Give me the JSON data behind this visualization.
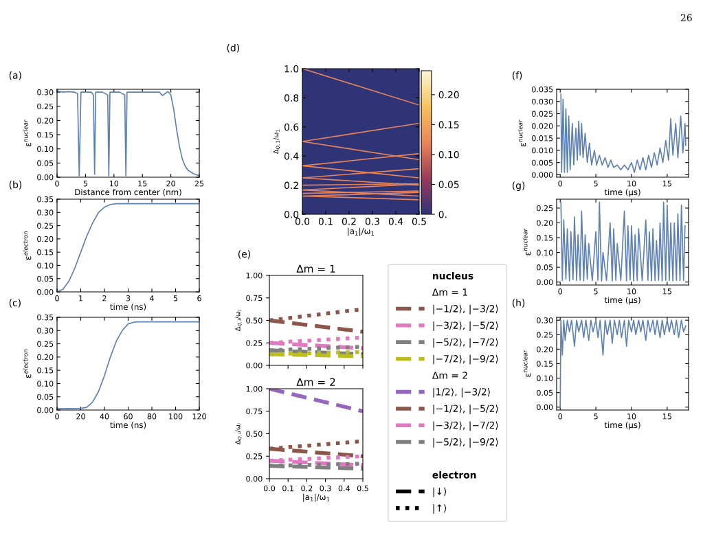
{
  "chart_data": [
    {
      "type": "line",
      "ylabel": "ε$^{nuclear}$",
      "xlabel": "Distance from center (nm)",
      "annotations": [
        "(a)",
        "26"
      ],
      "xlim": [
        0,
        25
      ],
      "xticks": [
        0,
        5,
        10,
        15,
        20,
        25
      ],
      "ylim": [
        0,
        0.31
      ],
      "yticks": [
        {
          "value": 0,
          "label": "0.00"
        },
        {
          "value": 0.05,
          "label": "0.05"
        },
        {
          "value": 0.1,
          "label": "0.10"
        },
        {
          "value": 0.15,
          "label": "0.15"
        },
        {
          "value": 0.2,
          "label": "0.20"
        },
        {
          "value": 0.25,
          "label": "0.25"
        },
        {
          "value": 0.3,
          "label": "0.30"
        }
      ],
      "series": [
        {
          "color": "#5e81b5",
          "x": [
            0,
            1,
            2,
            3,
            3.6,
            3.9,
            4.2,
            5,
            6,
            6.4,
            6.6,
            6.8,
            8,
            8.9,
            9.1,
            9.3,
            10,
            11,
            11.9,
            12.1,
            12.3,
            13,
            15,
            17,
            18,
            18.5,
            19,
            19.5,
            20,
            20.5,
            21,
            21.5,
            22,
            22.5,
            23,
            24,
            25
          ],
          "values": [
            0.305,
            0.3,
            0.302,
            0.3,
            0.295,
            0.005,
            0.3,
            0.3,
            0.3,
            0.29,
            0.01,
            0.3,
            0.3,
            0.29,
            0.005,
            0.3,
            0.3,
            0.3,
            0.29,
            0.005,
            0.3,
            0.3,
            0.3,
            0.3,
            0.3,
            0.288,
            0.295,
            0.302,
            0.29,
            0.24,
            0.17,
            0.11,
            0.065,
            0.04,
            0.025,
            0.012,
            0.005
          ]
        }
      ]
    },
    {
      "type": "line",
      "ylabel": "ε$^{electron}$",
      "xlabel": "time (ns)",
      "annotations": [
        "(b)"
      ],
      "xlim": [
        0,
        6
      ],
      "xticks": [
        0,
        1,
        2,
        3,
        4,
        5,
        6
      ],
      "ylim": [
        0,
        0.35
      ],
      "yticks": [
        {
          "value": 0,
          "label": "0.00"
        },
        {
          "value": 0.05,
          "label": "0.05"
        },
        {
          "value": 0.1,
          "label": "0.10"
        },
        {
          "value": 0.15,
          "label": "0.15"
        },
        {
          "value": 0.2,
          "label": "0.20"
        },
        {
          "value": 0.25,
          "label": "0.25"
        },
        {
          "value": 0.3,
          "label": "0.30"
        },
        {
          "value": 0.35,
          "label": "0.35"
        }
      ],
      "series": [
        {
          "color": "#5e81b5",
          "x": [
            0,
            0.25,
            0.5,
            0.75,
            1,
            1.25,
            1.5,
            1.75,
            2,
            2.25,
            2.5,
            3,
            6
          ],
          "values": [
            0,
            0.01,
            0.04,
            0.09,
            0.15,
            0.21,
            0.26,
            0.3,
            0.32,
            0.33,
            0.333,
            0.333,
            0.333
          ]
        }
      ]
    },
    {
      "type": "line",
      "ylabel": "ε$^{electron}$",
      "xlabel": "time (ns)",
      "annotations": [
        "(c)"
      ],
      "xlim": [
        0,
        120
      ],
      "xticks": [
        0,
        20,
        40,
        60,
        80,
        100,
        120
      ],
      "ylim": [
        0,
        0.35
      ],
      "yticks": [
        {
          "value": 0,
          "label": "0.00"
        },
        {
          "value": 0.05,
          "label": "0.05"
        },
        {
          "value": 0.1,
          "label": "0.10"
        },
        {
          "value": 0.15,
          "label": "0.15"
        },
        {
          "value": 0.2,
          "label": "0.20"
        },
        {
          "value": 0.25,
          "label": "0.25"
        },
        {
          "value": 0.3,
          "label": "0.30"
        },
        {
          "value": 0.35,
          "label": "0.35"
        }
      ],
      "series": [
        {
          "color": "#5e81b5",
          "x": [
            0,
            20,
            25,
            30,
            35,
            40,
            45,
            50,
            55,
            60,
            65,
            70,
            120
          ],
          "values": [
            0.005,
            0.006,
            0.01,
            0.03,
            0.07,
            0.13,
            0.2,
            0.26,
            0.3,
            0.325,
            0.332,
            0.333,
            0.333
          ]
        }
      ]
    },
    {
      "type": "line",
      "ylabel": "Δ$_{Q,1}$/ω$_{1}$",
      "xlabel": "|a$_{1}$|/ω$_{1}$",
      "annotations": [
        "(d)"
      ],
      "xlim": [
        0,
        0.5
      ],
      "xticks": [
        {
          "value": 0,
          "label": "0.0"
        },
        0.1,
        0.2,
        0.3,
        0.4,
        0.5
      ],
      "ylim": [
        0,
        1
      ],
      "yticks": [
        {
          "value": 0,
          "label": "0.0"
        },
        0.2,
        0.4,
        0.6,
        0.8,
        {
          "value": 1,
          "label": "1.0"
        }
      ],
      "bands": [
        {
          "axis": "x",
          "from": 0,
          "to": 0.5,
          "color": "#2f3477"
        }
      ],
      "clim": [
        0,
        0.24
      ],
      "cticks": [
        {
          "value": 0,
          "label": "0."
        },
        {
          "value": 0.05,
          "label": "0.05"
        },
        {
          "value": 0.1,
          "label": "0.10"
        },
        {
          "value": 0.15,
          "label": "0.15"
        },
        {
          "value": 0.2,
          "label": "0.20"
        }
      ],
      "series": [
        {
          "color": "#e8855a",
          "x": [
            0,
            0.5
          ],
          "values": [
            1.0,
            0.75
          ]
        },
        {
          "color": "#e8855a",
          "x": [
            0,
            0.5
          ],
          "values": [
            0.5,
            0.625
          ]
        },
        {
          "color": "#e8855a",
          "x": [
            0,
            0.5
          ],
          "values": [
            0.5,
            0.375
          ]
        },
        {
          "color": "#e8855a",
          "x": [
            0,
            0.5
          ],
          "values": [
            0.333,
            0.417
          ]
        },
        {
          "color": "#e8855a",
          "x": [
            0,
            0.5
          ],
          "values": [
            0.333,
            0.25
          ]
        },
        {
          "color": "#e8855a",
          "x": [
            0,
            0.5
          ],
          "values": [
            0.25,
            0.313
          ]
        },
        {
          "color": "#e8855a",
          "x": [
            0,
            0.5
          ],
          "values": [
            0.25,
            0.2
          ]
        },
        {
          "color": "#e8855a",
          "x": [
            0,
            0.5
          ],
          "values": [
            0.2,
            0.21
          ]
        },
        {
          "color": "#e8855a",
          "x": [
            0,
            0.5
          ],
          "values": [
            0.167,
            0.208
          ]
        },
        {
          "color": "#e8855a",
          "x": [
            0,
            0.5
          ],
          "values": [
            0.167,
            0.125
          ]
        },
        {
          "color": "#e8855a",
          "x": [
            0,
            0.5
          ],
          "values": [
            0.143,
            0.16
          ]
        },
        {
          "color": "#e8855a",
          "x": [
            0,
            0.5
          ],
          "values": [
            0.125,
            0.1
          ]
        },
        {
          "color": "#e8855a",
          "x": [
            0,
            0.5
          ],
          "values": [
            0.125,
            0.15
          ]
        }
      ]
    },
    {
      "type": "line",
      "title": "Δm = 1",
      "ylabel": "Δ$_{Q,i}$/ω$_{i}$",
      "annotations": [
        "(e)"
      ],
      "legend": "right",
      "legend_title": "nucleus",
      "tick_labels": "y",
      "xlim": [
        0,
        0.5
      ],
      "ylim": [
        0,
        1
      ],
      "yticks": [
        {
          "value": 0,
          "label": "0.00"
        },
        {
          "value": 0.25,
          "label": "0.25"
        },
        {
          "value": 0.5,
          "label": "0.50"
        },
        {
          "value": 0.75,
          "label": "0.75"
        },
        {
          "value": 1,
          "label": "1.00"
        }
      ],
      "series": [
        {
          "name": "|−1/2⟩, |−3/2⟩",
          "color": "#8c564b",
          "line_style": "dashed",
          "x": [
            0,
            0.5
          ],
          "values": [
            0.5,
            0.375
          ]
        },
        {
          "name": "|−3/2⟩, |−5/2⟩",
          "color": "#e377c2",
          "line_style": "dashed",
          "x": [
            0,
            0.5
          ],
          "values": [
            0.25,
            0.19
          ]
        },
        {
          "name": "|−5/2⟩, |−7/2⟩",
          "color": "#7f7f7f",
          "line_style": "dashed",
          "x": [
            0,
            0.5
          ],
          "values": [
            0.167,
            0.125
          ]
        },
        {
          "name": "|−7/2⟩, |−9/2⟩",
          "color": "#bcbd22",
          "line_style": "dashed",
          "x": [
            0,
            0.5
          ],
          "values": [
            0.125,
            0.1
          ]
        },
        {
          "color": "#8c564b",
          "line_style": "dotted",
          "x": [
            0,
            0.5
          ],
          "values": [
            0.5,
            0.625
          ]
        },
        {
          "color": "#e377c2",
          "line_style": "dotted",
          "x": [
            0,
            0.5
          ],
          "values": [
            0.25,
            0.31
          ]
        },
        {
          "color": "#7f7f7f",
          "line_style": "dotted",
          "x": [
            0,
            0.5
          ],
          "values": [
            0.167,
            0.208
          ]
        },
        {
          "color": "#bcbd22",
          "line_style": "dotted",
          "x": [
            0,
            0.5
          ],
          "values": [
            0.125,
            0.15
          ]
        }
      ]
    },
    {
      "type": "line",
      "title": "Δm = 2",
      "ylabel": "Δ$_{Q,i}$/ω$_{i}$",
      "xlabel": "|a$_{1}$|/ω$_{1}$",
      "legend": "right",
      "legend_title": "electron",
      "xlim": [
        0,
        0.5
      ],
      "xticks": [
        {
          "value": 0,
          "label": "0.0"
        },
        0.1,
        0.2,
        0.3,
        0.4,
        0.5
      ],
      "ylim": [
        0,
        1
      ],
      "yticks": [
        {
          "value": 0,
          "label": "0.00"
        },
        {
          "value": 0.25,
          "label": "0.25"
        },
        {
          "value": 0.5,
          "label": "0.50"
        },
        {
          "value": 0.75,
          "label": "0.75"
        },
        {
          "value": 1,
          "label": "1.00"
        }
      ],
      "series": [
        {
          "name": "|1/2⟩, |−3/2⟩",
          "color": "#9467bd",
          "line_style": "dashed",
          "x": [
            0,
            0.5
          ],
          "values": [
            1.0,
            0.75
          ]
        },
        {
          "name": "|−1/2⟩, |−5/2⟩",
          "color": "#8c564b",
          "line_style": "dashed",
          "x": [
            0,
            0.5
          ],
          "values": [
            0.333,
            0.25
          ]
        },
        {
          "name": "|−3/2⟩, |−7/2⟩",
          "color": "#e377c2",
          "line_style": "dashed",
          "x": [
            0,
            0.5
          ],
          "values": [
            0.2,
            0.15
          ]
        },
        {
          "name": "|−5/2⟩, |−9/2⟩",
          "color": "#7f7f7f",
          "line_style": "dashed",
          "x": [
            0,
            0.5
          ],
          "values": [
            0.143,
            0.111
          ]
        },
        {
          "color": "#8c564b",
          "line_style": "dotted",
          "x": [
            0,
            0.5
          ],
          "values": [
            0.333,
            0.417
          ]
        },
        {
          "color": "#e377c2",
          "line_style": "dotted",
          "x": [
            0,
            0.5
          ],
          "values": [
            0.2,
            0.25
          ]
        },
        {
          "color": "#7f7f7f",
          "line_style": "dotted",
          "x": [
            0,
            0.5
          ],
          "values": [
            0.143,
            0.167
          ]
        },
        {
          "name": "|↓⟩",
          "color": "#000000",
          "line_style": "dashed",
          "values": [
            null,
            null
          ]
        },
        {
          "name": "|↑⟩",
          "color": "#000000",
          "line_style": "dotted",
          "values": [
            null,
            null
          ]
        }
      ]
    },
    {
      "type": "line",
      "ylabel": "ε$^{nuclear}$",
      "xlabel": "time (μs)",
      "annotations": [
        "(f)"
      ],
      "xlim": [
        -0.5,
        18
      ],
      "xticks": [
        0,
        5,
        10,
        15
      ],
      "ylim": [
        -0.001,
        0.035
      ],
      "yticks": [
        {
          "value": 0,
          "label": "0.000"
        },
        {
          "value": 0.005,
          "label": "0.005"
        },
        {
          "value": 0.01,
          "label": "0.010"
        },
        {
          "value": 0.015,
          "label": "0.015"
        },
        {
          "value": 0.02,
          "label": "0.020"
        },
        {
          "value": 0.025,
          "label": "0.025"
        },
        {
          "value": 0.03,
          "label": "0.030"
        },
        {
          "value": 0.035,
          "label": "0.035"
        }
      ],
      "series": [
        {
          "color": "#5e81b5",
          "x": [
            0.1,
            0.2,
            0.4,
            0.6,
            0.8,
            1.0,
            1.2,
            1.4,
            1.7,
            1.9,
            2.2,
            2.4,
            2.6,
            2.8,
            3.0,
            3.2,
            3.5,
            3.8,
            4.1,
            4.4,
            4.8,
            5.1,
            5.5,
            5.9,
            6.3,
            6.7,
            7.1,
            7.5,
            8,
            8.5,
            9,
            9.5,
            10,
            10.4,
            10.8,
            11.2,
            11.6,
            12,
            12.4,
            12.8,
            13.2,
            13.6,
            14,
            14.4,
            14.8,
            15.2,
            15.5,
            15.8,
            16.2,
            16.5,
            16.9,
            17.2,
            17.5,
            17.6
          ],
          "values": [
            0.033,
            0.001,
            0.031,
            0.001,
            0.027,
            0.001,
            0.024,
            0.002,
            0.021,
            0.004,
            0.019,
            0.006,
            0.022,
            0.008,
            0.021,
            0.007,
            0.017,
            0.005,
            0.013,
            0.004,
            0.01,
            0.004,
            0.008,
            0.004,
            0.007,
            0.003,
            0.006,
            0.003,
            0.004,
            0.002,
            0.004,
            0.002,
            0.005,
            0.001,
            0.006,
            0.002,
            0.007,
            0.002,
            0.008,
            0.003,
            0.009,
            0.004,
            0.011,
            0.005,
            0.014,
            0.006,
            0.023,
            0.008,
            0.021,
            0.007,
            0.024,
            0.009,
            0.021,
            0.012
          ]
        }
      ]
    },
    {
      "type": "line",
      "ylabel": "ε$^{nuclear}$",
      "xlabel": "time (μs)",
      "annotations": [
        "(g)"
      ],
      "xlim": [
        -0.5,
        18
      ],
      "xticks": [
        0,
        5,
        10,
        15
      ],
      "ylim": [
        -0.01,
        0.28
      ],
      "yticks": [
        {
          "value": 0,
          "label": "0.00"
        },
        {
          "value": 0.05,
          "label": "0.05"
        },
        {
          "value": 0.1,
          "label": "0.10"
        },
        {
          "value": 0.15,
          "label": "0.15"
        },
        {
          "value": 0.2,
          "label": "0.20"
        },
        {
          "value": 0.25,
          "label": "0.25"
        }
      ],
      "series": [
        {
          "color": "#5e81b5",
          "x": [
            0.1,
            0.3,
            0.5,
            0.8,
            1,
            1.3,
            1.5,
            1.8,
            2,
            2.3,
            2.5,
            2.8,
            3,
            3.3,
            3.5,
            3.8,
            4,
            4.5,
            5,
            5.3,
            5.5,
            5.8,
            6,
            6.5,
            7,
            7.3,
            7.5,
            7.8,
            8,
            8.5,
            9,
            9.3,
            9.5,
            9.8,
            10,
            10.3,
            10.5,
            10.8,
            11,
            11.5,
            12,
            12.3,
            12.5,
            12.8,
            13,
            13.3,
            13.5,
            13.8,
            14,
            14.3,
            14.5,
            14.8,
            15,
            15.3,
            15.5,
            15.8,
            16,
            16.3,
            16.5,
            16.8,
            17,
            17.3,
            17.5
          ],
          "values": [
            0.27,
            0.005,
            0.21,
            0.01,
            0.18,
            0.004,
            0.17,
            0.008,
            0.22,
            0.005,
            0.16,
            0.006,
            0.24,
            0.004,
            0.16,
            0.01,
            0.13,
            0.005,
            0.17,
            0.006,
            0.27,
            0.003,
            0.1,
            0.005,
            0.2,
            0.004,
            0.18,
            0.006,
            0.13,
            0.005,
            0.24,
            0.004,
            0.19,
            0.007,
            0.19,
            0.004,
            0.16,
            0.006,
            0.18,
            0.005,
            0.21,
            0.006,
            0.17,
            0.004,
            0.18,
            0.005,
            0.14,
            0.006,
            0.2,
            0.004,
            0.27,
            0.006,
            0.26,
            0.005,
            0.2,
            0.004,
            0.2,
            0.006,
            0.23,
            0.005,
            0.26,
            0.006,
            0.19
          ]
        }
      ]
    },
    {
      "type": "line",
      "ylabel": "ε$^{nuclear}$",
      "xlabel": "time (μs)",
      "annotations": [
        "(h)"
      ],
      "xlim": [
        -0.5,
        18
      ],
      "xticks": [
        0,
        5,
        10,
        15
      ],
      "ylim": [
        -0.01,
        0.31
      ],
      "yticks": [
        {
          "value": 0,
          "label": "0.00"
        },
        {
          "value": 0.05,
          "label": "0.05"
        },
        {
          "value": 0.1,
          "label": "0.10"
        },
        {
          "value": 0.15,
          "label": "0.15"
        },
        {
          "value": 0.2,
          "label": "0.20"
        },
        {
          "value": 0.25,
          "label": "0.25"
        },
        {
          "value": 0.3,
          "label": "0.30"
        }
      ],
      "series": [
        {
          "color": "#5e81b5",
          "x": [
            0,
            0.1,
            0.3,
            0.5,
            0.7,
            1,
            1.3,
            1.6,
            2,
            2.3,
            2.6,
            3,
            3.3,
            3.6,
            4,
            4.3,
            4.6,
            5,
            5.3,
            5.6,
            6,
            6.3,
            6.6,
            7,
            7.3,
            7.6,
            8,
            8.3,
            8.6,
            9,
            9.3,
            9.6,
            10,
            10.3,
            10.6,
            11,
            11.3,
            11.6,
            12,
            12.3,
            12.6,
            13,
            13.3,
            13.6,
            14,
            14.3,
            14.6,
            15,
            15.3,
            15.6,
            16,
            16.3,
            16.6,
            17,
            17.3,
            17.6
          ],
          "values": [
            0,
            0.3,
            0.18,
            0.3,
            0.23,
            0.3,
            0.26,
            0.3,
            0.21,
            0.3,
            0.26,
            0.3,
            0.24,
            0.3,
            0.23,
            0.3,
            0.26,
            0.3,
            0.24,
            0.3,
            0.18,
            0.3,
            0.25,
            0.3,
            0.22,
            0.3,
            0.25,
            0.3,
            0.24,
            0.3,
            0.21,
            0.3,
            0.26,
            0.3,
            0.25,
            0.3,
            0.26,
            0.3,
            0.23,
            0.3,
            0.26,
            0.3,
            0.25,
            0.3,
            0.24,
            0.3,
            0.25,
            0.3,
            0.26,
            0.3,
            0.25,
            0.3,
            0.24,
            0.3,
            0.26,
            0.28
          ]
        }
      ]
    }
  ]
}
